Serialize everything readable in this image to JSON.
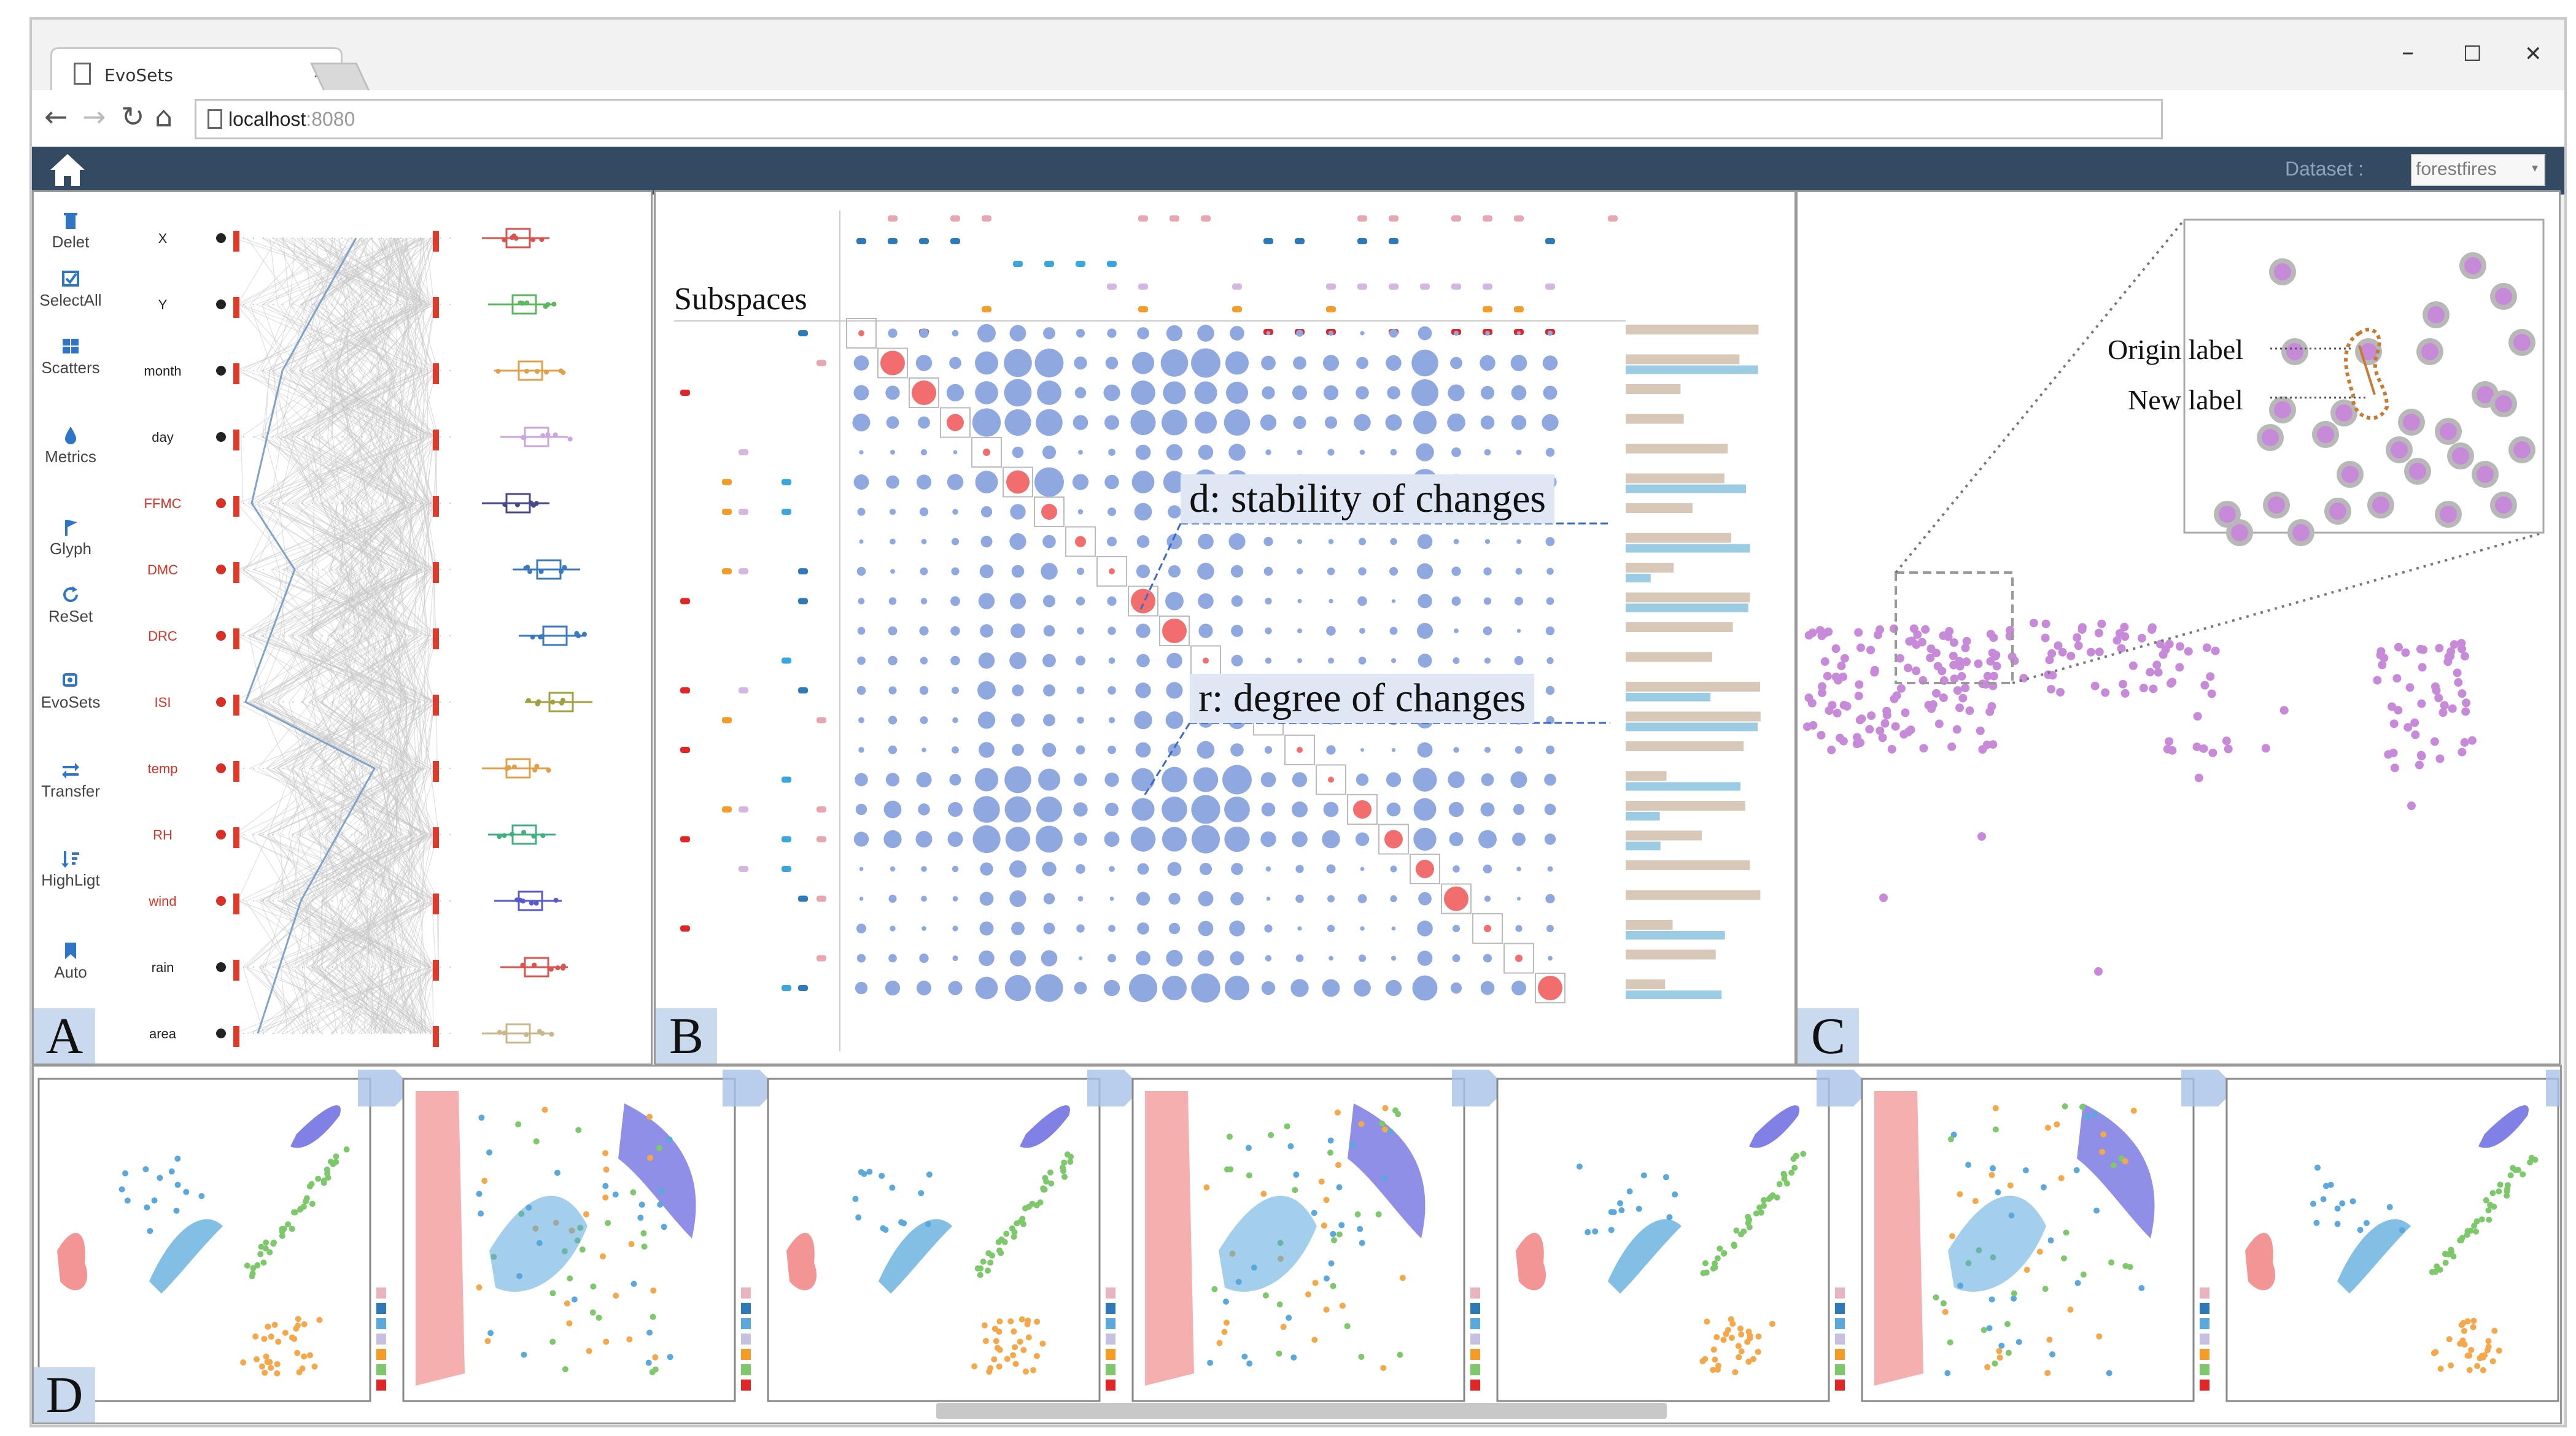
{
  "browser": {
    "tab_title": "EvoSets",
    "tab_close": "×",
    "url_host": "localhost",
    "url_port": ":8080",
    "window_controls": {
      "minimize": "–",
      "maximize": "☐",
      "close": "✕"
    },
    "nav": {
      "back": "←",
      "forward": "→",
      "reload": "↻",
      "home": "⌂"
    }
  },
  "app": {
    "dataset_label": "Dataset :",
    "dataset_value": "forestfires",
    "dataset_caret": "▾"
  },
  "toolbar": [
    {
      "label": "Delet",
      "icon": "trash-icon"
    },
    {
      "label": "SelectAll",
      "icon": "check-square-icon"
    },
    {
      "label": "Scatters",
      "icon": "grid-icon"
    },
    {
      "label": "Metrics",
      "icon": "droplet-icon"
    },
    {
      "label": "Glyph",
      "icon": "flag-icon"
    },
    {
      "label": "ReSet",
      "icon": "refresh-icon"
    },
    {
      "label": "EvoSets",
      "icon": "layers-icon"
    },
    {
      "label": "Transfer",
      "icon": "swap-icon"
    },
    {
      "label": "HighLigt",
      "icon": "sort-icon"
    },
    {
      "label": "Auto",
      "icon": "bookmark-icon"
    }
  ],
  "attributes": [
    {
      "name": "X",
      "color": "#222222"
    },
    {
      "name": "Y",
      "color": "#222222"
    },
    {
      "name": "month",
      "color": "#222222"
    },
    {
      "name": "day",
      "color": "#222222"
    },
    {
      "name": "FFMC",
      "color": "#d93025"
    },
    {
      "name": "DMC",
      "color": "#d93025"
    },
    {
      "name": "DRC",
      "color": "#d93025"
    },
    {
      "name": "ISI",
      "color": "#d93025"
    },
    {
      "name": "temp",
      "color": "#d93025"
    },
    {
      "name": "RH",
      "color": "#d93025"
    },
    {
      "name": "wind",
      "color": "#d93025"
    },
    {
      "name": "rain",
      "color": "#222222"
    },
    {
      "name": "area",
      "color": "#222222"
    }
  ],
  "boxplot_colors": [
    "#d9534f",
    "#5cb85c",
    "#e0a04a",
    "#c9a6e0",
    "#4a4a8a",
    "#3a7bbf",
    "#3a7bbf",
    "#a0a040",
    "#e0a04a",
    "#40b080",
    "#5a5ad0",
    "#d9534f",
    "#c8b88a"
  ],
  "panels": {
    "a": "A",
    "b": "B",
    "c": "C",
    "d": "D"
  },
  "matrix": {
    "subspaces_label": "Subspaces",
    "annotation_d": "d: stability of changes",
    "annotation_r": "r: degree of changes",
    "diag_color": "#f26d6d",
    "dot_color": "#8fa8e0"
  },
  "scatter": {
    "origin_label": "Origin label",
    "new_label": "New label",
    "point_color": "#c68ad8"
  },
  "cluster_colors": {
    "red": "#f07a7a",
    "blue": "#5aa8dc",
    "green": "#7cc86a",
    "orange": "#f4a84a",
    "purple": "#6a6ae0"
  }
}
